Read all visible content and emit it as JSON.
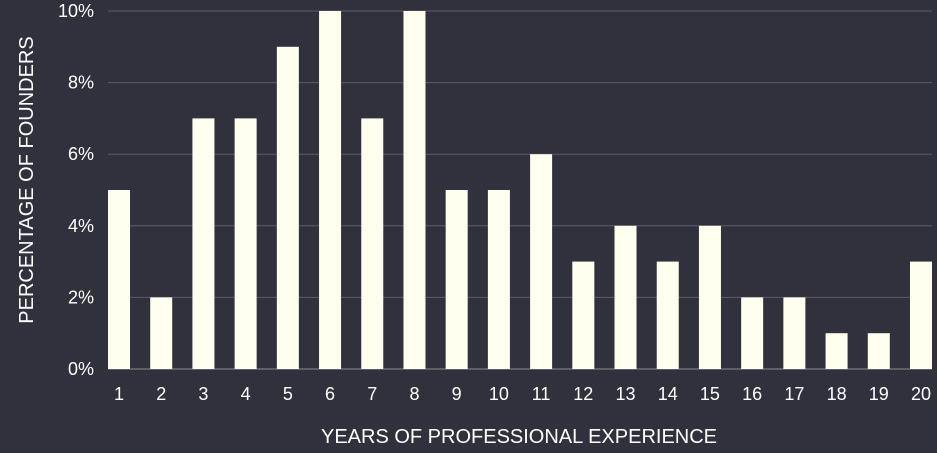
{
  "chart_data": {
    "type": "bar",
    "title": "",
    "xlabel": "YEARS OF PROFESSIONAL EXPERIENCE",
    "ylabel": "PERCENTAGE OF FOUNDERS",
    "categories": [
      "1",
      "2",
      "3",
      "4",
      "5",
      "6",
      "7",
      "8",
      "9",
      "10",
      "11",
      "12",
      "13",
      "14",
      "15",
      "16",
      "17",
      "18",
      "19",
      "20"
    ],
    "values": [
      5,
      2,
      7,
      7,
      9,
      10,
      7,
      10,
      5,
      5,
      6,
      3,
      4,
      3,
      4,
      2,
      2,
      1,
      1,
      3
    ],
    "ylim": [
      0,
      10
    ],
    "yticks": [
      0,
      2,
      4,
      6,
      8,
      10
    ],
    "ytick_labels": [
      "0%",
      "2%",
      "4%",
      "6%",
      "8%",
      "10%"
    ],
    "grid": true,
    "legend": "none"
  },
  "colors": {
    "background": "#30313d",
    "bar": "#fffff0",
    "grid": "#5c5d68",
    "text": "#ffffff"
  }
}
